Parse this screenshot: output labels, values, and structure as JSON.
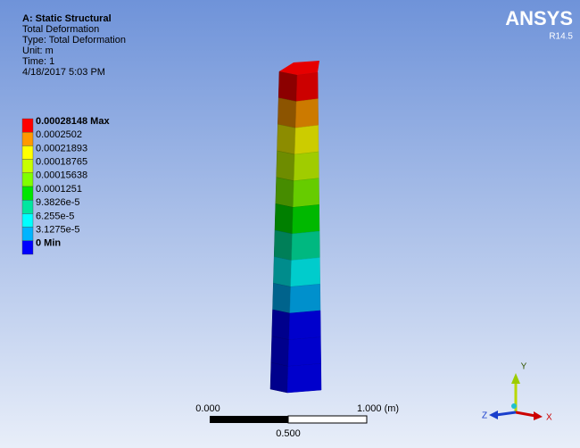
{
  "header": {
    "title": "A: Static Structural",
    "lines": [
      "Total Deformation",
      "Type: Total Deformation",
      "Unit: m",
      "Time: 1",
      "4/18/2017 5:03 PM"
    ]
  },
  "logo": {
    "name": "ANSYS",
    "version": "R14.5"
  },
  "legend": {
    "entries": [
      {
        "label": "0.00028148 Max",
        "color": "#ff0000"
      },
      {
        "label": "0.0002502",
        "color": "#ff9900"
      },
      {
        "label": "0.00021893",
        "color": "#ffff00"
      },
      {
        "label": "0.00018765",
        "color": "#c8ff00"
      },
      {
        "label": "0.00015638",
        "color": "#80ff00"
      },
      {
        "label": "0.0001251",
        "color": "#00e600"
      },
      {
        "label": "9.3826e-5",
        "color": "#00e6a0"
      },
      {
        "label": "6.255e-5",
        "color": "#00ffff"
      },
      {
        "label": "3.1275e-5",
        "color": "#00b4ff"
      },
      {
        "label": "0 Min",
        "color": "#0000ff"
      }
    ]
  },
  "scale_bar": {
    "labels": [
      "0.000",
      "1.000 (m)",
      "0.500"
    ]
  },
  "triad": {
    "x": "X",
    "y": "Y",
    "z": "Z"
  }
}
